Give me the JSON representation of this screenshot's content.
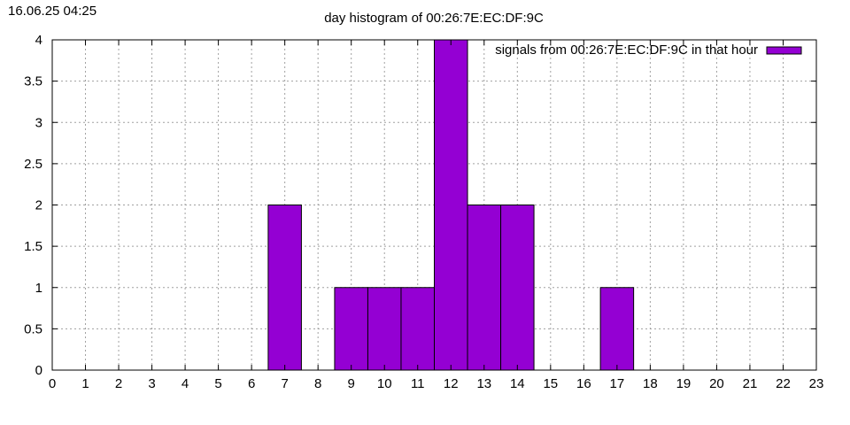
{
  "timestamp": "16.06.25 04:25",
  "chart_data": {
    "type": "bar",
    "title": "day histogram of 00:26:7E:EC:DF:9C",
    "xlabel": "",
    "ylabel": "",
    "xlim": [
      0,
      23
    ],
    "ylim": [
      0,
      4
    ],
    "x_ticks": [
      "0",
      "1",
      "2",
      "3",
      "4",
      "5",
      "6",
      "7",
      "8",
      "9",
      "10",
      "11",
      "12",
      "13",
      "14",
      "15",
      "16",
      "17",
      "18",
      "19",
      "20",
      "21",
      "22",
      "23"
    ],
    "y_ticks": [
      "0",
      "0.5",
      "1",
      "1.5",
      "2",
      "2.5",
      "3",
      "3.5",
      "4"
    ],
    "categories": [
      7,
      9,
      10,
      11,
      12,
      13,
      14,
      17
    ],
    "series": [
      {
        "name": "signals from 00:26:7E:EC:DF:9C in that hour",
        "values": [
          2,
          1,
          1,
          1,
          4,
          2,
          2,
          1
        ]
      }
    ],
    "grid": true,
    "legend_position": "top-right",
    "bar_color": "#9400d3"
  }
}
